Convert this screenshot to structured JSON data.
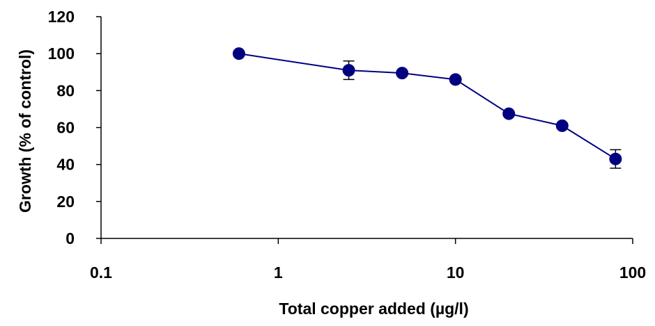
{
  "colors": {
    "series": "#000080",
    "axis": "#000000",
    "background": "#ffffff"
  },
  "chart_data": {
    "type": "scatter",
    "title": "",
    "xlabel": "Total copper added (µg/l)",
    "ylabel": "Growth (% of control)",
    "xscale": "log",
    "xlim": [
      0.1,
      100
    ],
    "ylim": [
      0,
      120
    ],
    "xticks": [
      0.1,
      1,
      10,
      100
    ],
    "xtick_labels": [
      "0.1",
      "1",
      "10",
      "100"
    ],
    "yticks": [
      0,
      20,
      40,
      60,
      80,
      100,
      120
    ],
    "ytick_labels": [
      "0",
      "20",
      "40",
      "60",
      "80",
      "100",
      "120"
    ],
    "grid": false,
    "legend": "none",
    "series": [
      {
        "points": [
          {
            "x": 0.6,
            "y": 100,
            "err": 0
          },
          {
            "x": 2.5,
            "y": 91,
            "err": 5
          },
          {
            "x": 5,
            "y": 89.5,
            "err": 0
          },
          {
            "x": 10,
            "y": 86,
            "err": 0
          },
          {
            "x": 20,
            "y": 67.5,
            "err": 0
          },
          {
            "x": 40,
            "y": 61,
            "err": 0
          },
          {
            "x": 80,
            "y": 43,
            "err": 5
          }
        ]
      }
    ]
  }
}
